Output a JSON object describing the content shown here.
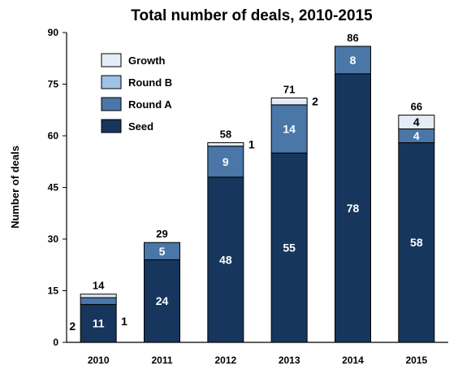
{
  "chart_data": {
    "type": "bar",
    "stacked": true,
    "title": "Total number of deals, 2010-2015",
    "xlabel": "",
    "ylabel": "Number of deals",
    "ylim": [
      0,
      90
    ],
    "yticks": [
      0,
      15,
      30,
      45,
      60,
      75,
      90
    ],
    "grid": false,
    "legend_position": "top-left",
    "categories": [
      "2010",
      "2011",
      "2012",
      "2013",
      "2014",
      "2015"
    ],
    "series": [
      {
        "name": "Seed",
        "color": "#17365d",
        "values": [
          11,
          24,
          48,
          55,
          78,
          58
        ]
      },
      {
        "name": "Round A",
        "color": "#4a76a8",
        "values": [
          2,
          5,
          9,
          14,
          8,
          4
        ]
      },
      {
        "name": "Round B",
        "color": "#9dc3e6",
        "values": [
          0,
          0,
          0,
          0,
          0,
          0
        ]
      },
      {
        "name": "Growth",
        "color": "#e4ecf5",
        "values": [
          1,
          0,
          1,
          2,
          0,
          4
        ]
      }
    ],
    "totals": [
      14,
      29,
      58,
      71,
      86,
      66
    ],
    "segment_labels": [
      {
        "category": "2010",
        "series": "Seed",
        "text": "11",
        "placement": "inside"
      },
      {
        "category": "2010",
        "series": "Round A",
        "text": "2",
        "placement": "left"
      },
      {
        "category": "2010",
        "series": "Growth",
        "text": "1",
        "placement": "right"
      },
      {
        "category": "2011",
        "series": "Seed",
        "text": "24",
        "placement": "inside"
      },
      {
        "category": "2011",
        "series": "Round A",
        "text": "5",
        "placement": "inside"
      },
      {
        "category": "2012",
        "series": "Seed",
        "text": "48",
        "placement": "inside"
      },
      {
        "category": "2012",
        "series": "Round A",
        "text": "9",
        "placement": "inside"
      },
      {
        "category": "2012",
        "series": "Growth",
        "text": "1",
        "placement": "right"
      },
      {
        "category": "2013",
        "series": "Seed",
        "text": "55",
        "placement": "inside"
      },
      {
        "category": "2013",
        "series": "Round A",
        "text": "14",
        "placement": "inside"
      },
      {
        "category": "2013",
        "series": "Growth",
        "text": "2",
        "placement": "right"
      },
      {
        "category": "2014",
        "series": "Seed",
        "text": "78",
        "placement": "inside"
      },
      {
        "category": "2014",
        "series": "Round A",
        "text": "8",
        "placement": "inside"
      },
      {
        "category": "2015",
        "series": "Seed",
        "text": "58",
        "placement": "inside"
      },
      {
        "category": "2015",
        "series": "Round A",
        "text": "4",
        "placement": "inside"
      },
      {
        "category": "2015",
        "series": "Growth",
        "text": "4",
        "placement": "inside"
      }
    ],
    "legend": [
      "Growth",
      "Round B",
      "Round A",
      "Seed"
    ]
  }
}
